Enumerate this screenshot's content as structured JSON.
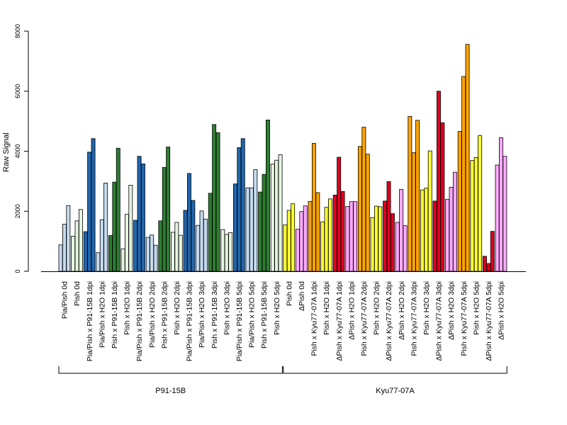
{
  "chart_data": {
    "type": "bar",
    "ylabel": "Raw Signal",
    "ylim": [
      0,
      8000
    ],
    "yticks": [
      0,
      2000,
      4000,
      6000,
      8000
    ],
    "grid": false,
    "legend": "none",
    "groups": [
      {
        "name": "P91-15B",
        "first_category": 0,
        "last_category": 17
      },
      {
        "name": "Kyu77-07A",
        "first_category": 18,
        "last_category": 35
      }
    ],
    "categories": [
      "Pia/Pish 0d",
      "Pish 0d",
      "Pia/Pish x P91-15B 1dpi",
      "Pia/Pish x H2O 1dpi",
      "Pish x P91-15B 1dpi",
      "Pish x H2O 1dpi",
      "Pia/Pish x P91-15B 2dpi",
      "Pia/Pish x H2O 2dpi",
      "Pish x P91-15B 2dpi",
      "Pish x H2O 2dpi",
      "Pia/Pish x P91-15B 3dpi",
      "Pia/Pish x H2O 3dpi",
      "Pish x P91-15B 3dpi",
      "Pish x H2O 3dpi",
      "Pia/Pish x P91-15B 5dpi",
      "Pia/Pish x H2O 5dpi",
      "Pish x P91-15B 5dpi",
      "Pish x H2O 5dpi",
      "Pish 0d",
      "ΔPish 0d",
      "Pish x Kyu77-07A 1dpi",
      "Pish x H2O 1dpi",
      "ΔPish x Kyu77-07A 1dpi",
      "ΔPish x H2O 1dpi",
      "Pish x Kyu77-07A 2dpi",
      "Pish x H2O 2dpi",
      "ΔPish x Kyu77-07A 2dpi",
      "ΔPish x H2O 2dpi",
      "Pish x Kyu77-07A 3dpi",
      "Pish x H2O 3dpi",
      "ΔPish x Kyu77-07A 3dpi",
      "ΔPish x H2O 3dpi",
      "Pish x Kyu77-07A 5dpi",
      "Pish x H2O 5dpi",
      "ΔPish x Kyu77-07A 5dpi",
      "ΔPish x H2O 5dpi"
    ],
    "colors": [
      "#c6dbef",
      "#e5f5e0",
      "#2166ac",
      "#c6dbef",
      "#2e7d32",
      "#e5f5e0",
      "#2166ac",
      "#c6dbef",
      "#2e7d32",
      "#e5f5e0",
      "#2166ac",
      "#c6dbef",
      "#2e7d32",
      "#e5f5e0",
      "#2166ac",
      "#c6dbef",
      "#2e7d32",
      "#e5f5e0",
      "#ffff33",
      "#ffaaff",
      "#ffa500",
      "#ffff33",
      "#e00020",
      "#ffaaff",
      "#ffa500",
      "#ffff33",
      "#e00020",
      "#ffaaff",
      "#ffa500",
      "#ffff33",
      "#e00020",
      "#ffaaff",
      "#ffa500",
      "#ffff33",
      "#e00020",
      "#ffaaff"
    ],
    "values": [
      [
        880,
        1570,
        2190
      ],
      [
        1170,
        1680,
        2060
      ],
      [
        1320,
        3970,
        4420
      ],
      [
        620,
        1720,
        2940
      ],
      [
        1190,
        2970,
        4100
      ],
      [
        750,
        1900,
        2870
      ],
      [
        1700,
        3830,
        3580
      ],
      [
        1130,
        1210,
        870
      ],
      [
        1680,
        3460,
        4140
      ],
      [
        1300,
        1630,
        1200
      ],
      [
        2030,
        3260,
        2360
      ],
      [
        1530,
        2010,
        1740
      ],
      [
        2600,
        4890,
        4620
      ],
      [
        1390,
        1230,
        1290
      ],
      [
        2910,
        4120,
        4420
      ],
      [
        2780,
        2780,
        3390
      ],
      [
        2640,
        3230,
        5040
      ],
      [
        3570,
        3700,
        3880
      ],
      [
        1550,
        2030,
        2250
      ],
      [
        1400,
        1990,
        2180
      ],
      [
        2330,
        4260,
        2620
      ],
      [
        1650,
        2130,
        2410
      ],
      [
        2540,
        3800,
        2660
      ],
      [
        2160,
        2320,
        2320
      ],
      [
        4160,
        4800,
        3900
      ],
      [
        1790,
        2170,
        2150
      ],
      [
        2340,
        2990,
        1920
      ],
      [
        1630,
        2730,
        1520
      ],
      [
        5160,
        3950,
        5030
      ],
      [
        2710,
        2770,
        4010
      ],
      [
        2340,
        6000,
        4950
      ],
      [
        2400,
        2800,
        3300
      ],
      [
        4660,
        6490,
        7560
      ],
      [
        3690,
        3790,
        4520
      ],
      [
        500,
        260,
        1330
      ],
      [
        3540,
        4450,
        3830
      ]
    ]
  }
}
